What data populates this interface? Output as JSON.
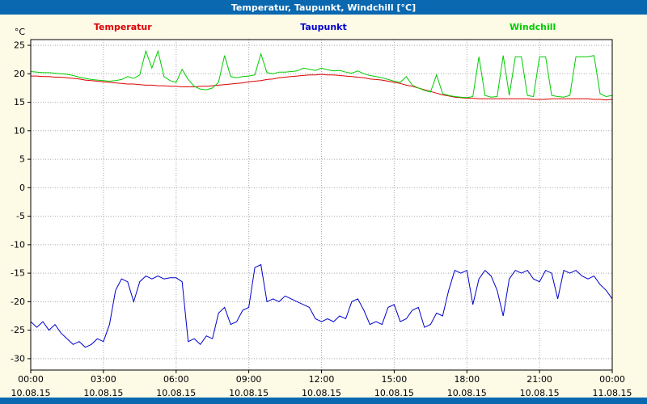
{
  "window": {
    "title": "Temperatur, Taupunkt, Windchill [°C]"
  },
  "colors": {
    "titlebar_bg": "#0a68b0",
    "titlebar_text": "#ffffff",
    "page_bg": "#fdfae6",
    "plot_bg": "#ffffff",
    "grid": "#a8a8a8",
    "axis": "#000000",
    "temperatur": "#dd0000",
    "taupunkt": "#0000cc",
    "windchill": "#00cc00",
    "footer_bg": "#0a68b0"
  },
  "chart_data": {
    "type": "line",
    "title": "Temperatur, Taupunkt, Windchill [°C]",
    "ylabel": "°C",
    "xlabel": "",
    "ylim": [
      -32,
      26
    ],
    "y_ticks": [
      25,
      20,
      15,
      10,
      5,
      0,
      -5,
      -10,
      -15,
      -20,
      -25,
      -30
    ],
    "x_range": [
      0,
      24
    ],
    "x_step_hours": 0.25,
    "grid": true,
    "legend_position": "top",
    "x_ticks": [
      {
        "hour": 0,
        "time": "00:00",
        "date": "10.08.15"
      },
      {
        "hour": 3,
        "time": "03:00",
        "date": "10.08.15"
      },
      {
        "hour": 6,
        "time": "06:00",
        "date": "10.08.15"
      },
      {
        "hour": 9,
        "time": "09:00",
        "date": "10.08.15"
      },
      {
        "hour": 12,
        "time": "12:00",
        "date": "10.08.15"
      },
      {
        "hour": 15,
        "time": "15:00",
        "date": "10.08.15"
      },
      {
        "hour": 18,
        "time": "18:00",
        "date": "10.08.15"
      },
      {
        "hour": 21,
        "time": "21:00",
        "date": "10.08.15"
      },
      {
        "hour": 24,
        "time": "00:00",
        "date": "11.08.15"
      }
    ],
    "series": [
      {
        "name": "Temperatur",
        "color": "#dd0000",
        "values": [
          19.6,
          19.6,
          19.5,
          19.5,
          19.4,
          19.4,
          19.3,
          19.2,
          19.1,
          18.9,
          18.8,
          18.7,
          18.6,
          18.5,
          18.4,
          18.3,
          18.2,
          18.2,
          18.1,
          18.0,
          18.0,
          17.9,
          17.9,
          17.8,
          17.8,
          17.7,
          17.7,
          17.7,
          17.8,
          17.8,
          17.9,
          18.0,
          18.1,
          18.2,
          18.3,
          18.4,
          18.6,
          18.7,
          18.8,
          19.0,
          19.1,
          19.3,
          19.4,
          19.5,
          19.6,
          19.7,
          19.8,
          19.8,
          19.9,
          19.8,
          19.8,
          19.7,
          19.6,
          19.5,
          19.4,
          19.3,
          19.1,
          19.0,
          18.9,
          18.7,
          18.5,
          18.3,
          18.0,
          17.8,
          17.5,
          17.2,
          16.9,
          16.6,
          16.3,
          16.1,
          15.9,
          15.8,
          15.7,
          15.7,
          15.6,
          15.6,
          15.6,
          15.6,
          15.6,
          15.6,
          15.6,
          15.6,
          15.6,
          15.5,
          15.5,
          15.5,
          15.6,
          15.6,
          15.6,
          15.6,
          15.6,
          15.6,
          15.6,
          15.5,
          15.5,
          15.4,
          15.5
        ]
      },
      {
        "name": "Taupunkt",
        "color": "#0000cc",
        "values": [
          -23.5,
          -24.5,
          -23.5,
          -25.0,
          -24.0,
          -25.5,
          -26.5,
          -27.5,
          -27.0,
          -28.0,
          -27.5,
          -26.5,
          -27.0,
          -24.0,
          -18.0,
          -16.0,
          -16.5,
          -20.0,
          -16.5,
          -15.5,
          -16.0,
          -15.5,
          -16.0,
          -15.8,
          -15.8,
          -16.5,
          -27.0,
          -26.5,
          -27.5,
          -26.0,
          -26.5,
          -22.0,
          -21.0,
          -24.0,
          -23.5,
          -21.5,
          -21.0,
          -14.0,
          -13.5,
          -20.0,
          -19.5,
          -20.0,
          -19.0,
          -19.5,
          -20.0,
          -20.5,
          -21.0,
          -23.0,
          -23.5,
          -23.0,
          -23.5,
          -22.5,
          -23.0,
          -20.0,
          -19.5,
          -21.5,
          -24.0,
          -23.5,
          -24.0,
          -21.0,
          -20.5,
          -23.5,
          -23.0,
          -21.5,
          -21.0,
          -24.5,
          -24.0,
          -22.0,
          -22.5,
          -18.0,
          -14.5,
          -15.0,
          -14.5,
          -20.5,
          -16.0,
          -14.5,
          -15.5,
          -18.0,
          -22.5,
          -16.0,
          -14.5,
          -15.0,
          -14.5,
          -16.0,
          -16.5,
          -14.5,
          -15.0,
          -19.5,
          -14.5,
          -15.0,
          -14.5,
          -15.5,
          -16.0,
          -15.5,
          -17.0,
          -18.0,
          -19.5
        ]
      },
      {
        "name": "Windchill",
        "color": "#00cc00",
        "values": [
          20.4,
          20.3,
          20.2,
          20.2,
          20.1,
          20.0,
          19.9,
          19.7,
          19.4,
          19.2,
          19.0,
          18.9,
          18.8,
          18.7,
          18.8,
          19.0,
          19.5,
          19.2,
          19.8,
          24.0,
          21.0,
          24.0,
          19.5,
          18.8,
          18.5,
          20.8,
          19.0,
          17.8,
          17.3,
          17.2,
          17.5,
          18.5,
          23.2,
          19.5,
          19.3,
          19.5,
          19.6,
          19.8,
          23.5,
          20.2,
          20.0,
          20.3,
          20.3,
          20.4,
          20.5,
          21.0,
          20.8,
          20.6,
          21.0,
          20.7,
          20.5,
          20.6,
          20.3,
          20.1,
          20.5,
          20.0,
          19.7,
          19.5,
          19.3,
          19.0,
          18.7,
          18.5,
          19.5,
          18.0,
          17.5,
          17.1,
          16.8,
          19.8,
          16.5,
          16.2,
          16.0,
          15.9,
          15.8,
          16.0,
          23.0,
          16.2,
          15.9,
          16.0,
          23.2,
          16.2,
          23.0,
          23.0,
          16.2,
          16.0,
          23.0,
          23.0,
          16.2,
          16.0,
          15.9,
          16.2,
          23.0,
          23.0,
          23.0,
          23.2,
          16.5,
          16.0,
          16.2
        ]
      }
    ]
  }
}
